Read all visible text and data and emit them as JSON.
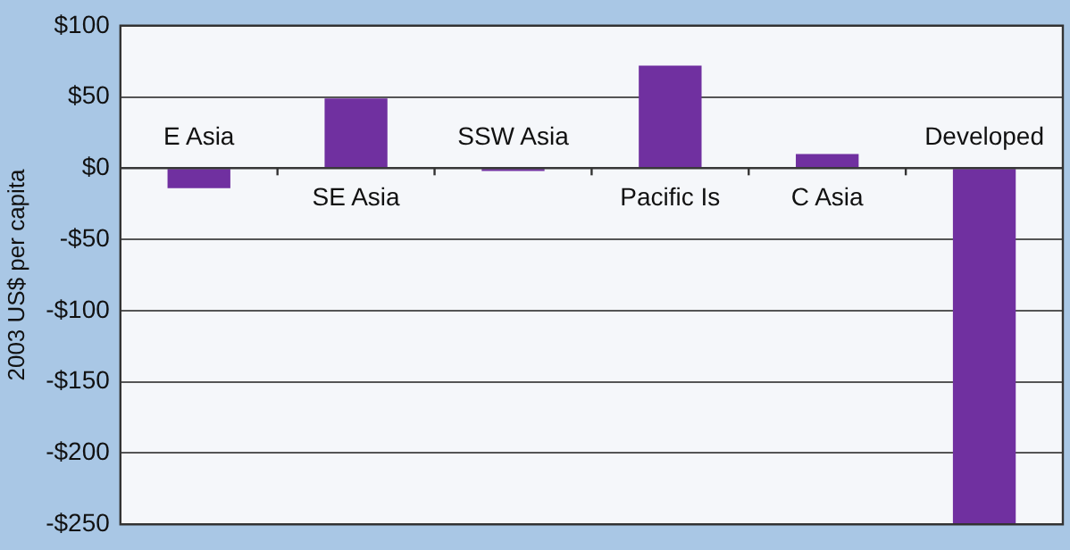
{
  "chart_data": {
    "type": "bar",
    "ylabel": "2003 US$ per capita",
    "categories": [
      "E Asia",
      "SE Asia",
      "SSW Asia",
      "Pacific Is",
      "C Asia",
      "Developed"
    ],
    "values": [
      -14,
      49,
      -2,
      72,
      10,
      -250
    ],
    "color": "#7030a0",
    "ylim": [
      -250,
      100
    ],
    "yticks": [
      {
        "value": -250,
        "label": "-$250"
      },
      {
        "value": -200,
        "label": "-$200"
      },
      {
        "value": -150,
        "label": "-$150"
      },
      {
        "value": -100,
        "label": "-$100"
      },
      {
        "value": -50,
        "label": "-$50"
      },
      {
        "value": 0,
        "label": "$0"
      },
      {
        "value": 50,
        "label": "$50"
      },
      {
        "value": 100,
        "label": "$100"
      }
    ],
    "grid": "y",
    "legend": false
  }
}
